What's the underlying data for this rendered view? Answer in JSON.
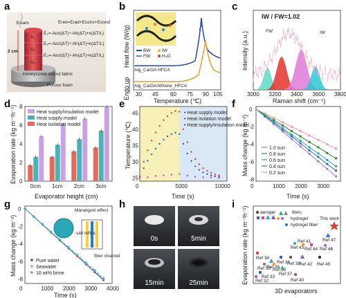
{
  "panels": {
    "a": {
      "label": "a",
      "eq": [
        "Enet=Erad+Econv+Econd",
        "E₁=-Aεσ(ΔT)⁴-Ah(ΔT)+κ(ΔT/L)",
        "E₂=-Aεσ(ΔT)⁴-Ah(ΔT)+κ(ΔT/L)",
        "E₃=-Aεσ(ΔT)⁴-Ah(ΔT)+κ(ΔT/L)"
      ],
      "steam": "Steam",
      "height": "2 cm",
      "zones": [
        "A₁",
        "A₂",
        "A₃"
      ],
      "fabric": "Honeycomb oxford fabric",
      "foam": "Porous foam"
    },
    "b": {
      "label": "b",
      "ylabel": "Heat flow (W/g)",
      "endo": "Endo up",
      "xlabel": "Temperature (℃)",
      "curve1": "Alg_Ca/GA HFCA",
      "curve2": "Alg_Ca/GA/MXene_HFCA",
      "legend": [
        "BW",
        "IW",
        "FW",
        "H₂O"
      ]
    },
    "c": {
      "label": "c",
      "title": "IW / FW=1.02",
      "fw": "FW",
      "iw": "IW",
      "ylabel": "Intensity (a.u.)",
      "xlabel": "Raman shift  (cm⁻¹)"
    },
    "d": {
      "label": "d"
    },
    "e": {
      "label": "e"
    },
    "f": {
      "label": "f"
    },
    "g": {
      "label": "g",
      "marangoni": "Marangoni effect",
      "salt": "salt reflux",
      "fiber": "fiber channel"
    },
    "h": {
      "label": "h",
      "times": [
        "0s",
        "5min",
        "15min",
        "25min"
      ]
    },
    "i": {
      "label": "i",
      "ylabel": "Evaporation rate (kg m⁻²h⁻¹)",
      "xlabel": "3D evaporators",
      "legend": [
        "aerogel",
        "fibric",
        "hydrogel",
        "hydrogel fiber"
      ],
      "this_work": "This work",
      "refs": [
        "Ref 47",
        "Ref 46",
        "Ref 44",
        "Ref 43",
        "Ref 41",
        "Ref 34",
        "Ref 36",
        "Ref 31",
        "Ref 39",
        "Ref 42",
        "Ref 45",
        "Ref 35",
        "Ref 38",
        "Ref 37",
        "Ref 33",
        "Ref 32",
        "Ref 40"
      ]
    }
  },
  "chart_data": [
    {
      "panel": "c",
      "type": "area",
      "xlabel": "Raman shift  (cm⁻¹)",
      "ylabel": "Intensity (a.u.)",
      "x_ticks": [
        3000,
        3200,
        3400,
        3600,
        3800
      ],
      "xlim": [
        3000,
        3800
      ],
      "peaks": [
        {
          "name": "FW",
          "center": 3130,
          "color": "#5fd9c4"
        },
        {
          "name": "FW",
          "center": 3260,
          "color": "#e5322d"
        },
        {
          "name": "IW",
          "center": 3440,
          "color": "#e07ad8"
        },
        {
          "name": "IW",
          "center": 3570,
          "color": "#2ec7d6"
        }
      ]
    },
    {
      "panel": "d",
      "type": "bar",
      "xlabel": "Evaporator height (cm)",
      "ylabel": "Evaporation rate (kg m⁻²h⁻¹)",
      "categories": [
        "0cm",
        "1cm",
        "2cm",
        "3cm"
      ],
      "ylim": [
        0,
        8
      ],
      "y_ticks": [
        0,
        2,
        4,
        6,
        8
      ],
      "series": [
        {
          "name": "Heat isolation model",
          "color": "#e8695a",
          "values": [
            1.7,
            2.6,
            3.2,
            3.6
          ]
        },
        {
          "name": "Heat supply model",
          "color": "#4ab3b8",
          "values": [
            2.6,
            3.9,
            4.5,
            5.4
          ]
        },
        {
          "name": "Heat supply/insulation model",
          "color": "#c9a2e6",
          "values": [
            4.8,
            6.1,
            6.7,
            8.0
          ]
        }
      ]
    },
    {
      "panel": "e",
      "type": "scatter",
      "xlabel": "Time (s)",
      "ylabel": "Temperature (℃)",
      "xlim": [
        0,
        11000
      ],
      "ylim": [
        24,
        47
      ],
      "x_ticks": [
        0,
        5000,
        10000
      ],
      "y_ticks": [
        25,
        30,
        35,
        40,
        45
      ],
      "series": [
        {
          "name": "Heat supply model",
          "color": "#1f5fb3",
          "x": [
            0,
            500,
            1000,
            1500,
            2000,
            2500,
            3000,
            3500,
            4000,
            4500,
            5000,
            5500,
            6000,
            6500,
            7000,
            7500,
            8000,
            8500,
            9000,
            9500,
            10000
          ],
          "y": [
            25.3,
            28.0,
            30.3,
            32.3,
            34.0,
            35.5,
            36.8,
            37.8,
            38.5,
            38.9,
            38.5,
            35.5,
            32.5,
            30.2,
            28.6,
            27.5,
            26.7,
            26.2,
            25.8,
            25.5,
            25.4
          ]
        },
        {
          "name": "Heat isolation model",
          "color": "#c43bd4",
          "x": [
            0,
            1000,
            2000,
            3000,
            4000,
            5000,
            6000,
            7000,
            8000,
            9000,
            10000
          ],
          "y": [
            25.0,
            25.2,
            25.6,
            25.8,
            26.0,
            26.2,
            25.7,
            25.4,
            25.2,
            25.1,
            25.0
          ]
        },
        {
          "name": "Heat supply/insulation model",
          "color": "#e53b2e",
          "x": [
            0,
            500,
            1000,
            1500,
            2000,
            2500,
            3000,
            3500,
            4000,
            4500,
            5000,
            5500,
            6000,
            6500,
            7000,
            7500,
            8000,
            8500,
            9000,
            9500,
            10000
          ],
          "y": [
            25.5,
            30.0,
            33.5,
            36.5,
            39.0,
            41.0,
            42.8,
            44.0,
            45.0,
            45.6,
            45.4,
            40.0,
            36.0,
            33.0,
            30.8,
            29.2,
            28.0,
            27.2,
            26.6,
            26.1,
            25.8
          ]
        }
      ]
    },
    {
      "panel": "f",
      "type": "line",
      "xlabel": "Time (s)",
      "ylabel": "Mass change (kg m⁻²)",
      "xlim": [
        0,
        3800
      ],
      "ylim": [
        -8.2,
        0.3
      ],
      "x_ticks": [
        0,
        1000,
        2000,
        3000
      ],
      "y_ticks": [
        0,
        -2,
        -4,
        -6,
        -8
      ],
      "series": [
        {
          "name": "1.0 sun",
          "color": "#b070e0",
          "x": [
            0,
            400,
            800,
            1200,
            1600,
            2000,
            2400,
            2800,
            3200,
            3600
          ],
          "y": [
            0,
            -0.85,
            -1.7,
            -2.55,
            -3.4,
            -4.25,
            -5.1,
            -5.95,
            -6.8,
            -7.65
          ]
        },
        {
          "name": "0.8 sun",
          "color": "#2c6fd0",
          "x": [
            0,
            400,
            800,
            1200,
            1600,
            2000,
            2400,
            2800,
            3200,
            3600
          ],
          "y": [
            0,
            -0.8,
            -1.55,
            -2.35,
            -3.1,
            -3.9,
            -4.7,
            -5.45,
            -6.25,
            -7.0
          ]
        },
        {
          "name": "0.6 sun",
          "color": "#2ea1a8",
          "x": [
            0,
            400,
            800,
            1200,
            1600,
            2000,
            2400,
            2800,
            3200,
            3600
          ],
          "y": [
            0,
            -0.72,
            -1.45,
            -2.15,
            -2.9,
            -3.6,
            -4.35,
            -5.05,
            -5.8,
            -6.5
          ]
        },
        {
          "name": "0.4 sun",
          "color": "#2f8a2f",
          "x": [
            0,
            400,
            800,
            1200,
            1600,
            2000,
            2400,
            2800,
            3200,
            3600
          ],
          "y": [
            0,
            -0.62,
            -1.25,
            -1.85,
            -2.5,
            -3.1,
            -3.75,
            -4.35,
            -5.0,
            -5.6
          ]
        },
        {
          "name": "0.2 sun",
          "color": "#f19ab0",
          "x": [
            0,
            400,
            800,
            1200,
            1600,
            2000,
            2400,
            2800,
            3200,
            3600
          ],
          "y": [
            0,
            -0.5,
            -1.0,
            -1.5,
            -2.0,
            -2.5,
            -3.0,
            -3.5,
            -4.0,
            -4.5
          ]
        }
      ]
    },
    {
      "panel": "g",
      "type": "line",
      "xlabel": "Time (s)",
      "ylabel": "Mass change (kg m⁻²)",
      "xlim": [
        0,
        4000
      ],
      "ylim": [
        -8.5,
        0.3
      ],
      "x_ticks": [
        0,
        1000,
        2000,
        3000,
        4000
      ],
      "y_ticks": [
        0,
        -2,
        -4,
        -6,
        -8
      ],
      "series": [
        {
          "name": "Pure water",
          "color": "#1f4fa8",
          "x": [
            0,
            400,
            800,
            1200,
            1600,
            2000,
            2400,
            2800,
            3200,
            3600
          ],
          "y": [
            0,
            -0.9,
            -1.8,
            -2.7,
            -3.6,
            -4.5,
            -5.4,
            -6.3,
            -7.2,
            -8.1
          ]
        },
        {
          "name": "Seawater",
          "color": "#f08080",
          "x": [
            0,
            400,
            800,
            1200,
            1600,
            2000,
            2400,
            2800,
            3200,
            3600
          ],
          "y": [
            0,
            -0.88,
            -1.77,
            -2.66,
            -3.55,
            -4.44,
            -5.33,
            -6.22,
            -7.1,
            -8.0
          ]
        },
        {
          "name": "10 wt% brine",
          "color": "#2fb8c8",
          "x": [
            0,
            400,
            800,
            1200,
            1600,
            2000,
            2400,
            2800,
            3200,
            3600
          ],
          "y": [
            0,
            -0.87,
            -1.75,
            -2.62,
            -3.5,
            -4.38,
            -5.25,
            -6.12,
            -7.0,
            -7.9
          ]
        }
      ]
    }
  ],
  "axis_labels": {
    "d_x": "Evaporator height (cm)",
    "d_y": "Evaporation rate (kg m⁻²h⁻¹)",
    "e_x": "Time (s)",
    "e_y": "Temperature (℃)",
    "f_x": "Time (s)",
    "f_y": "Mass change (kg m⁻²)",
    "g_x": "Time (s)",
    "g_y": "Mass change (kg m⁻²)"
  }
}
